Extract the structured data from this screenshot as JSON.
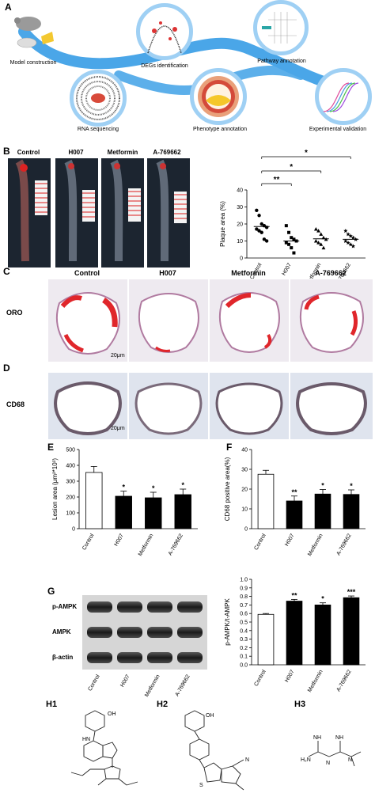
{
  "panels": {
    "a": {
      "letter": "A",
      "steps": [
        "Model construction",
        "DEGs identification",
        "Pathway annotation",
        "RNA sequencing",
        "Phenotype annotation",
        "Experimental validation"
      ]
    },
    "b": {
      "letter": "B",
      "groups": [
        "Control",
        "H007",
        "Metformin",
        "A-769662"
      ]
    },
    "c": {
      "letter": "C",
      "groups": [
        "Control",
        "H007",
        "Metformin",
        "A-769662"
      ],
      "row_label": "ORO",
      "scale": "20μm"
    },
    "d": {
      "letter": "D",
      "row_label": "CD68",
      "scale": "20μm"
    },
    "e": {
      "letter": "E"
    },
    "f": {
      "letter": "F"
    },
    "g": {
      "letter": "G",
      "blot_labels": [
        "p-AMPK",
        "AMPK",
        "β-actin"
      ],
      "lanes": [
        "Control",
        "H007",
        "Metformin",
        "A-769662"
      ]
    },
    "h": {
      "labels": [
        "H1",
        "H2",
        "H3"
      ]
    }
  },
  "colors": {
    "arrow_blue": "#4aa6e8",
    "oro_red": "#e0262b",
    "tissue_purple": "#b9a6c8"
  },
  "chart_data": [
    {
      "id": "B-scatter",
      "type": "scatter",
      "ylabel": "Plaque area (%)",
      "ylim": [
        0,
        40
      ],
      "yticks": [
        0,
        10,
        20,
        30,
        40
      ],
      "categories": [
        "Control",
        "H007",
        "Metformin",
        "A-769662"
      ],
      "means": [
        18.5,
        10.0,
        11.3,
        11.0
      ],
      "points": [
        [
          28,
          25,
          20,
          19,
          18,
          17,
          16,
          15,
          11,
          10
        ],
        [
          19,
          15,
          12,
          11,
          10,
          9,
          8,
          6,
          3
        ],
        [
          17,
          16,
          14,
          12,
          11,
          10,
          9,
          8,
          6
        ],
        [
          16,
          14,
          13,
          12,
          11,
          10,
          9,
          8,
          7
        ]
      ],
      "significance": [
        "**",
        "*",
        "*"
      ]
    },
    {
      "id": "E-bar",
      "type": "bar",
      "ylabel": "Lesion area (μm²*10³)",
      "ylim": [
        0,
        500
      ],
      "yticks": [
        0,
        100,
        200,
        300,
        400,
        500
      ],
      "categories": [
        "Control",
        "H007",
        "Metformin",
        "A-769662"
      ],
      "values": [
        355,
        205,
        195,
        215
      ],
      "errors": [
        38,
        32,
        35,
        35
      ],
      "significance": [
        "",
        "*",
        "*",
        "*"
      ]
    },
    {
      "id": "F-bar",
      "type": "bar",
      "ylabel": "CD68 positive area(%)",
      "ylim": [
        0,
        40
      ],
      "yticks": [
        0,
        10,
        20,
        30,
        40
      ],
      "categories": [
        "Control",
        "H007",
        "Metformin",
        "A-769662"
      ],
      "values": [
        27.5,
        14,
        17.5,
        17.3
      ],
      "errors": [
        2,
        2.5,
        2.3,
        2.3
      ],
      "significance": [
        "",
        "**",
        "*",
        "*"
      ]
    },
    {
      "id": "G-bar",
      "type": "bar",
      "ylabel": "p-AMPK/t-AMPK",
      "ylim": [
        0,
        1.0
      ],
      "yticks": [
        0.0,
        0.1,
        0.2,
        0.3,
        0.4,
        0.5,
        0.6,
        0.7,
        0.8,
        0.9,
        1.0
      ],
      "categories": [
        "Control",
        "H007",
        "Metformin",
        "A-769662"
      ],
      "values": [
        0.59,
        0.745,
        0.7,
        0.785
      ],
      "errors": [
        0.01,
        0.02,
        0.025,
        0.02
      ],
      "significance": [
        "",
        "**",
        "*",
        "***"
      ]
    }
  ]
}
